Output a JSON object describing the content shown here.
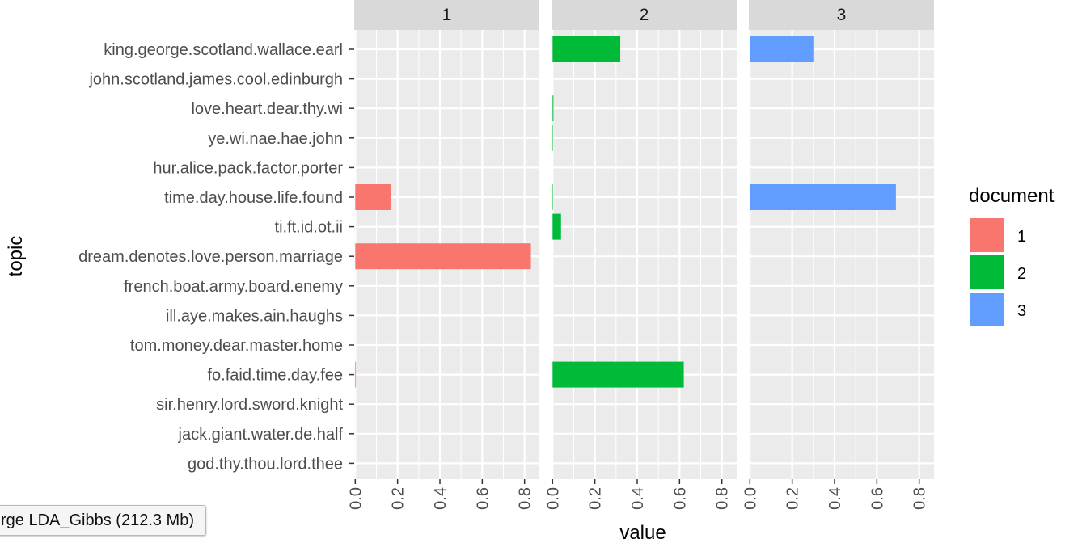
{
  "chart_data": {
    "type": "bar",
    "orientation": "horizontal",
    "facet_by": "document",
    "panels": [
      "1",
      "2",
      "3"
    ],
    "categories": [
      "king.george.scotland.wallace.earl",
      "john.scotland.james.cool.edinburgh",
      "love.heart.dear.thy.wi",
      "ye.wi.nae.hae.john",
      "hur.alice.pack.factor.porter",
      "time.day.house.life.found",
      "ti.ft.id.ot.ii",
      "dream.denotes.love.person.marriage",
      "french.boat.army.board.enemy",
      "ill.aye.makes.ain.haughs",
      "tom.money.dear.master.home",
      "fo.faid.time.day.fee",
      "sir.henry.lord.sword.knight",
      "jack.giant.water.de.half",
      "god.thy.thou.lord.thee"
    ],
    "series": [
      {
        "name": "1",
        "color": "#F8766D",
        "values": [
          0.0,
          0.0,
          0.0,
          0.0,
          0.0,
          0.17,
          0.0,
          0.83,
          0.0,
          0.0,
          0.0,
          0.003,
          0.0,
          0.0,
          0.0
        ]
      },
      {
        "name": "2",
        "color": "#00BA38",
        "values": [
          0.32,
          0.0,
          0.004,
          0.002,
          0.0,
          0.002,
          0.04,
          0.0,
          0.0,
          0.0,
          0.0,
          0.62,
          0.0,
          0.0,
          0.0
        ]
      },
      {
        "name": "3",
        "color": "#619CFF",
        "values": [
          0.3,
          0.0,
          0.0,
          0.0,
          0.0,
          0.69,
          0.0,
          0.0,
          0.0,
          0.0,
          0.0,
          0.0,
          0.0,
          0.0,
          0.0
        ]
      }
    ],
    "xlabel": "value",
    "ylabel": "topic",
    "xlim": [
      -0.005,
      0.87
    ],
    "xticks": [
      "0.0",
      "0.2",
      "0.4",
      "0.6",
      "0.8"
    ],
    "grid": true,
    "legend": {
      "title": "document",
      "position": "right",
      "labels": [
        "1",
        "2",
        "3"
      ]
    }
  },
  "tooltip": "rge LDA_Gibbs (212.3 Mb)"
}
